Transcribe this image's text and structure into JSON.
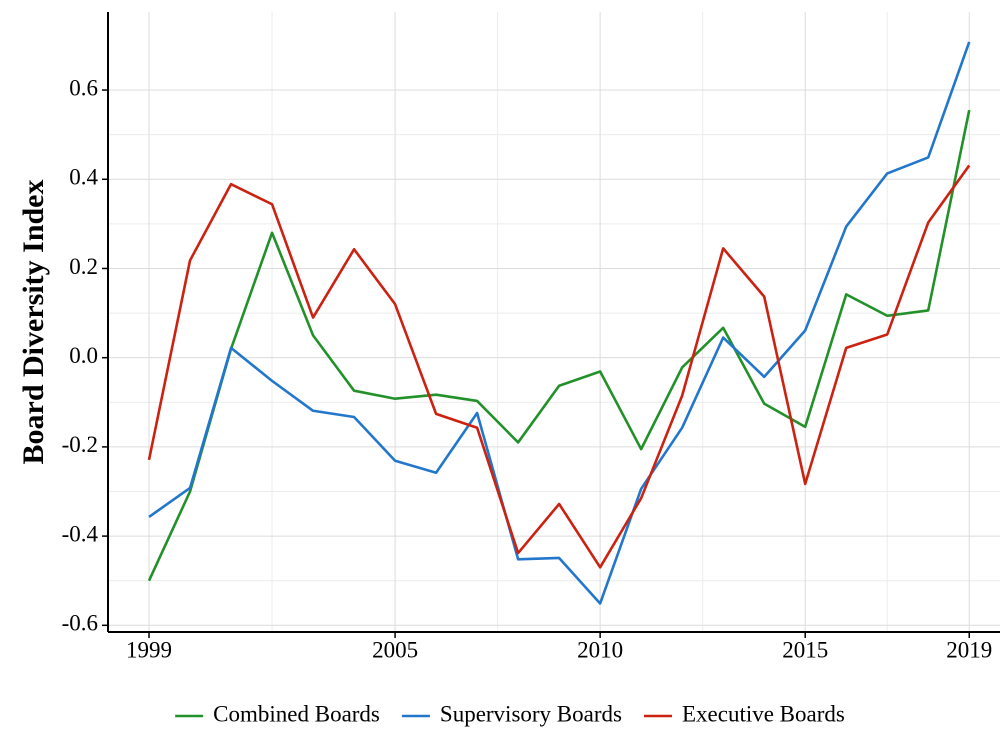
{
  "chart_data": {
    "type": "line",
    "y_label": "Board Diversity Index",
    "x": [
      1999,
      2000,
      2001,
      2002,
      2003,
      2004,
      2005,
      2006,
      2007,
      2008,
      2009,
      2010,
      2011,
      2012,
      2013,
      2014,
      2015,
      2016,
      2017,
      2018,
      2019
    ],
    "series": [
      {
        "name": "Combined Boards",
        "color": "#23912a",
        "values": [
          -0.5,
          -0.3,
          0.02,
          0.28,
          0.05,
          -0.074,
          -0.092,
          -0.083,
          -0.097,
          -0.19,
          -0.063,
          -0.031,
          -0.205,
          -0.022,
          0.067,
          -0.103,
          -0.155,
          0.142,
          0.094,
          0.106,
          0.555
        ]
      },
      {
        "name": "Supervisory Boards",
        "color": "#2277cc",
        "values": [
          -0.357,
          -0.292,
          0.022,
          -0.052,
          -0.119,
          -0.133,
          -0.231,
          -0.258,
          -0.124,
          -0.452,
          -0.449,
          -0.551,
          -0.294,
          -0.157,
          0.045,
          -0.043,
          0.061,
          0.294,
          0.413,
          0.449,
          0.708
        ]
      },
      {
        "name": "Executive Boards",
        "color": "#cc2211",
        "values": [
          -0.229,
          0.218,
          0.389,
          0.344,
          0.09,
          0.243,
          0.12,
          -0.126,
          -0.157,
          -0.438,
          -0.328,
          -0.47,
          -0.315,
          -0.085,
          0.245,
          0.137,
          -0.283,
          0.022,
          0.052,
          0.303,
          0.431
        ]
      }
    ],
    "xlim": [
      1998,
      2019.75
    ],
    "xticks": [
      1999,
      2005,
      2010,
      2015,
      2019
    ],
    "ylim": [
      -0.615,
      0.775
    ],
    "yticks": [
      -0.6,
      -0.4,
      -0.2,
      {
        "value": 0,
        "label": "0.0"
      },
      0.2,
      0.4,
      0.6
    ],
    "grid": true,
    "legend": "bottom"
  }
}
